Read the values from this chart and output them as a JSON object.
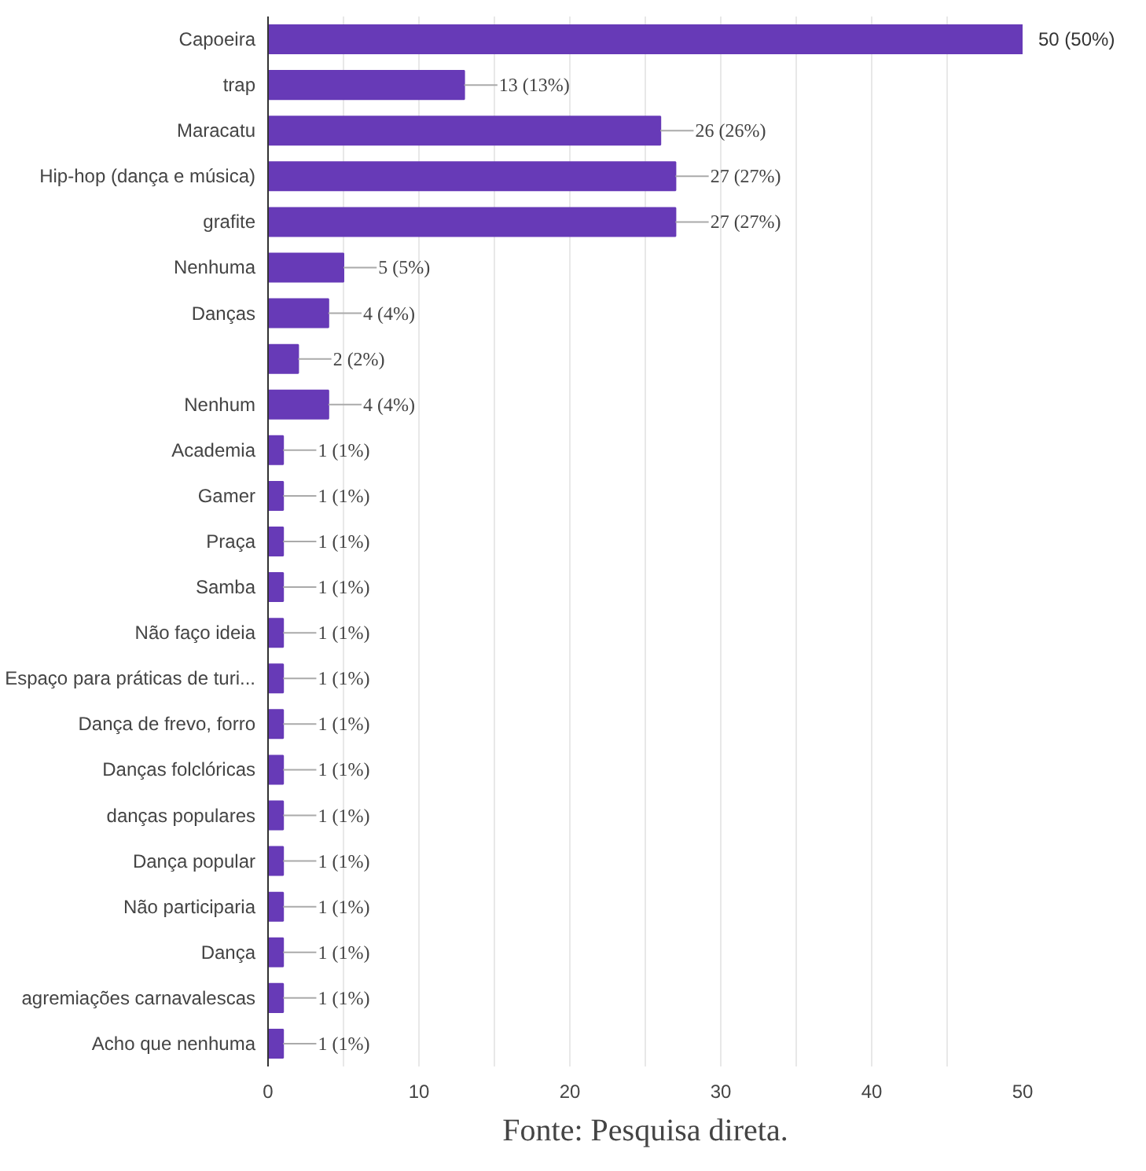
{
  "chart_data": {
    "type": "bar",
    "orientation": "horizontal",
    "categories": [
      "Capoeira",
      "trap",
      "Maracatu",
      "Hip-hop (dança e música)",
      "grafite",
      "Nenhuma",
      "Danças",
      null,
      "Nenhum",
      "Academia",
      "Gamer",
      "Praça",
      "Samba",
      "Não faço ideia",
      "Espaço para práticas de turi...",
      "Dança de frevo, forro",
      "Danças folclóricas",
      "danças populares",
      "Dança popular",
      "Não participaria",
      "Dança",
      "agremiações carnavalescas",
      "Acho que nenhuma"
    ],
    "values": [
      50,
      13,
      26,
      27,
      27,
      5,
      4,
      2,
      4,
      1,
      1,
      1,
      1,
      1,
      1,
      1,
      1,
      1,
      1,
      1,
      1,
      1,
      1
    ],
    "value_labels": [
      "50 (50%)",
      "13 (13%)",
      "26 (26%)",
      "27 (27%)",
      "27 (27%)",
      "5 (5%)",
      "4 (4%)",
      "2 (2%)",
      "4 (4%)",
      "1 (1%)",
      "1 (1%)",
      "1 (1%)",
      "1 (1%)",
      "1 (1%)",
      "1 (1%)",
      "1 (1%)",
      "1 (1%)",
      "1 (1%)",
      "1 (1%)",
      "1 (1%)",
      "1 (1%)",
      "1 (1%)",
      "1 (1%)"
    ],
    "color": "#673ab7",
    "xlim": [
      0,
      50
    ],
    "xticks": [
      0,
      {
        "value": 5,
        "label": null
      },
      10,
      {
        "value": 15,
        "label": null
      },
      20,
      {
        "value": 25,
        "label": null
      },
      30,
      {
        "value": 35,
        "label": null
      },
      40,
      {
        "value": 45,
        "label": null
      },
      50
    ],
    "grid": "x",
    "annotations": [
      "Fonte: Pesquisa direta."
    ]
  }
}
